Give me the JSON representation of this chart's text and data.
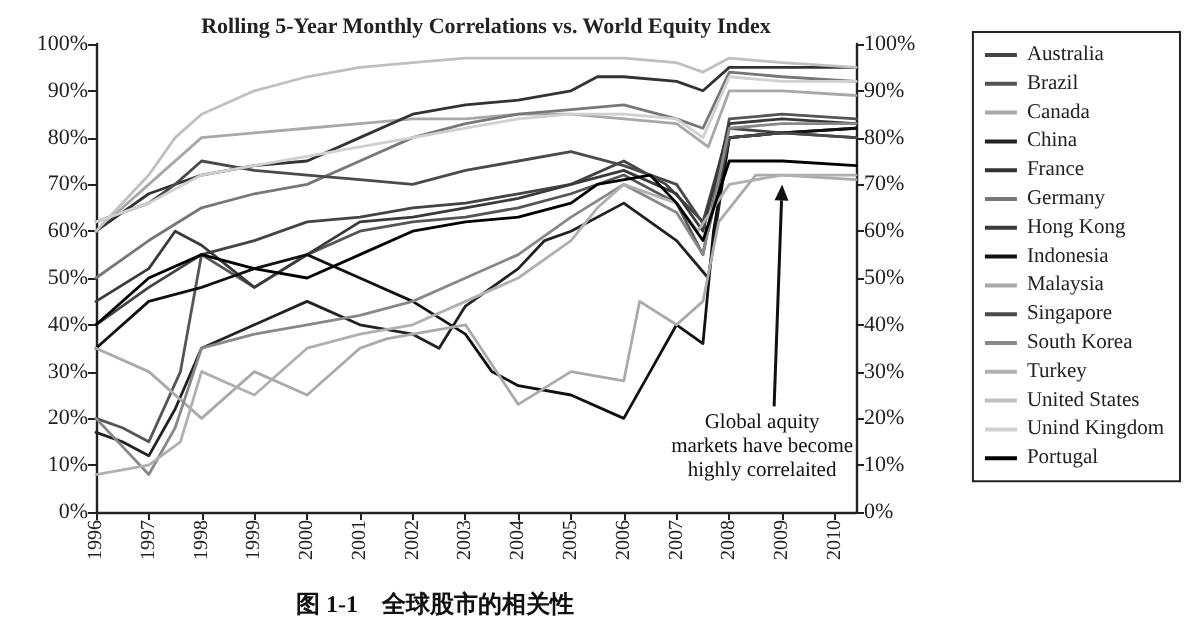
{
  "chart_data": {
    "type": "line",
    "title": "Rolling 5-Year Monthly Correlations vs. World Equity Index",
    "annotations": [
      {
        "text": "Global aquity markets have become highly correlaited",
        "x": 2009,
        "y": 70
      },
      "图 1-1　全球股市的相关性"
    ],
    "xlim": [
      1996,
      2010.4
    ],
    "xticks": [
      1996,
      1997,
      1998,
      1999,
      2000,
      2001,
      2002,
      2003,
      2004,
      2005,
      2006,
      2007,
      2008,
      2009,
      2010
    ],
    "ylim": [
      0,
      100
    ],
    "yticks": [
      {
        "value": 0,
        "label": "0%"
      },
      {
        "value": 10,
        "label": "10%"
      },
      {
        "value": 20,
        "label": "20%"
      },
      {
        "value": 30,
        "label": "30%"
      },
      {
        "value": 40,
        "label": "40%"
      },
      {
        "value": 50,
        "label": "50%"
      },
      {
        "value": 60,
        "label": "60%"
      },
      {
        "value": 70,
        "label": "70%"
      },
      {
        "value": 80,
        "label": "80%"
      },
      {
        "value": 90,
        "label": "90%"
      },
      {
        "value": 100,
        "label": "100%"
      }
    ],
    "y2lim": [
      0,
      100
    ],
    "y2ticks": [
      {
        "value": 0,
        "label": "0%"
      },
      {
        "value": 10,
        "label": "10%"
      },
      {
        "value": 20,
        "label": "20%"
      },
      {
        "value": 30,
        "label": "30%"
      },
      {
        "value": 40,
        "label": "40%"
      },
      {
        "value": 50,
        "label": "50%"
      },
      {
        "value": 60,
        "label": "60%"
      },
      {
        "value": 70,
        "label": "70%"
      },
      {
        "value": 80,
        "label": "80%"
      },
      {
        "value": 90,
        "label": "90%"
      },
      {
        "value": 100,
        "label": "100%"
      }
    ],
    "legend": "right",
    "grid": false,
    "marker": "none",
    "line_style": "solid",
    "series": [
      {
        "name": "Australia",
        "color": "#444444",
        "x": [
          1996,
          1997,
          1998,
          1999,
          2000,
          2001,
          2002,
          2003,
          2004,
          2005,
          2006,
          2006.8,
          2007.5,
          2008,
          2009,
          2010.4
        ],
        "values": [
          40,
          48,
          55,
          58,
          62,
          63,
          65,
          66,
          68,
          70,
          75,
          70,
          62,
          82,
          81,
          80
        ]
      },
      {
        "name": "Brazil",
        "color": "#555555",
        "x": [
          1996,
          1996.5,
          1997,
          1997.6,
          1998,
          1999,
          2000,
          2001,
          2002,
          2003,
          2004,
          2005,
          2006,
          2007,
          2007.5,
          2008,
          2009,
          2010.4
        ],
        "values": [
          20,
          18,
          15,
          30,
          55,
          48,
          55,
          60,
          62,
          63,
          65,
          68,
          72,
          66,
          55,
          84,
          85,
          84
        ]
      },
      {
        "name": "Canada",
        "color": "#a8a8a8",
        "x": [
          1996,
          1997,
          1998,
          1999,
          2000,
          2001,
          2002,
          2003,
          2004,
          2005,
          2006,
          2007,
          2007.6,
          2008,
          2009,
          2010.4
        ],
        "values": [
          60,
          70,
          80,
          81,
          82,
          83,
          84,
          84,
          85,
          85,
          84,
          83,
          78,
          90,
          90,
          89
        ]
      },
      {
        "name": "China",
        "color": "#222222",
        "x": [
          1996,
          1996.5,
          1997,
          1997.5,
          1998,
          1999,
          2000,
          2001,
          2002,
          2002.5,
          2003,
          2004,
          2004.5,
          2005,
          2006,
          2007,
          2007.6,
          2008,
          2009,
          2010.4
        ],
        "values": [
          17,
          15,
          12,
          22,
          35,
          40,
          45,
          40,
          38,
          35,
          44,
          52,
          58,
          60,
          66,
          58,
          50,
          80,
          81,
          82
        ]
      },
      {
        "name": "France",
        "color": "#333333",
        "x": [
          1996,
          1997,
          1998,
          1999,
          2000,
          2001,
          2002,
          2003,
          2004,
          2005,
          2005.5,
          2006,
          2007,
          2007.5,
          2008,
          2009,
          2010.4
        ],
        "values": [
          60,
          68,
          72,
          74,
          75,
          80,
          85,
          87,
          88,
          90,
          93,
          93,
          92,
          90,
          95,
          95,
          95
        ]
      },
      {
        "name": "Germany",
        "color": "#777777",
        "x": [
          1996,
          1997,
          1998,
          1999,
          2000,
          2001,
          2002,
          2003,
          2004,
          2005,
          2006,
          2007,
          2007.5,
          2008,
          2009,
          2010.4
        ],
        "values": [
          50,
          58,
          65,
          68,
          70,
          75,
          80,
          83,
          85,
          86,
          87,
          84,
          82,
          94,
          93,
          92
        ]
      },
      {
        "name": "Hong Kong",
        "color": "#3a3a3a",
        "x": [
          1996,
          1997,
          1997.5,
          1998,
          1999,
          2000,
          2001,
          2002,
          2003,
          2004,
          2005,
          2006,
          2007,
          2007.5,
          2008,
          2009,
          2010.4
        ],
        "values": [
          45,
          52,
          60,
          57,
          48,
          55,
          62,
          63,
          65,
          67,
          70,
          73,
          68,
          60,
          83,
          84,
          83
        ]
      },
      {
        "name": "Indonesia",
        "color": "#111111",
        "x": [
          1996,
          1997,
          1998,
          1998.5,
          1999,
          2000,
          2001,
          2002,
          2003,
          2003.5,
          2004,
          2005,
          2006,
          2006.5,
          2007,
          2007.5,
          2007.7,
          2008,
          2009,
          2010.4
        ],
        "values": [
          35,
          45,
          48,
          50,
          52,
          55,
          50,
          45,
          38,
          30,
          27,
          25,
          20,
          30,
          40,
          36,
          60,
          80,
          81,
          82
        ]
      },
      {
        "name": "Malaysia",
        "color": "#aaaaaa",
        "x": [
          1996,
          1997,
          1998,
          1999,
          2000,
          2001,
          2001.5,
          2002,
          2003,
          2004,
          2005,
          2006,
          2006.3,
          2007,
          2007.5,
          2007.8,
          2008.5,
          2009,
          2010.4
        ],
        "values": [
          35,
          30,
          20,
          30,
          25,
          35,
          37,
          38,
          40,
          23,
          30,
          28,
          45,
          40,
          45,
          62,
          72,
          72,
          71
        ]
      },
      {
        "name": "Singapore",
        "color": "#4a4a4a",
        "x": [
          1996,
          1997,
          1997.5,
          1998,
          1999,
          2000,
          2001,
          2002,
          2003,
          2004,
          2005,
          2006,
          2007,
          2007.6,
          2008,
          2009,
          2010.4
        ],
        "values": [
          62,
          66,
          70,
          75,
          73,
          72,
          71,
          70,
          73,
          75,
          77,
          74,
          70,
          60,
          80,
          81,
          80
        ]
      },
      {
        "name": "South Korea",
        "color": "#888888",
        "x": [
          1996,
          1997,
          1997.5,
          1998,
          1999,
          2000,
          2001,
          2002,
          2003,
          2004,
          2005,
          2006,
          2007,
          2007.5,
          2008,
          2009,
          2010.4
        ],
        "values": [
          20,
          8,
          18,
          35,
          38,
          40,
          42,
          45,
          50,
          55,
          63,
          70,
          64,
          55,
          82,
          83,
          83
        ]
      },
      {
        "name": "Turkey",
        "color": "#b0b0b0",
        "x": [
          1996,
          1997,
          1997.6,
          1998,
          1999,
          2000,
          2001,
          2002,
          2003,
          2004,
          2005,
          2005.5,
          2006,
          2007,
          2007.4,
          2008,
          2009,
          2010.4
        ],
        "values": [
          8,
          10,
          15,
          30,
          25,
          35,
          38,
          40,
          45,
          50,
          58,
          65,
          70,
          66,
          60,
          70,
          72,
          72
        ]
      },
      {
        "name": "United States",
        "color": "#c0c0c0",
        "x": [
          1996,
          1997,
          1997.5,
          1998,
          1999,
          2000,
          2001,
          2002,
          2003,
          2004,
          2005,
          2006,
          2007,
          2007.5,
          2008,
          2009,
          2010.4
        ],
        "values": [
          60,
          72,
          80,
          85,
          90,
          93,
          95,
          96,
          97,
          97,
          97,
          97,
          96,
          94,
          97,
          96,
          95
        ]
      },
      {
        "name": "Unind Kingdom",
        "color": "#d0d0d0",
        "x": [
          1996,
          1997,
          1998,
          1999,
          2000,
          2001,
          2002,
          2003,
          2004,
          2005,
          2006,
          2007,
          2007.5,
          2008,
          2009,
          2010.4
        ],
        "values": [
          62,
          66,
          72,
          74,
          76,
          78,
          80,
          82,
          84,
          85,
          85,
          84,
          80,
          93,
          92,
          92
        ]
      },
      {
        "name": "Portugal",
        "color": "#000000",
        "x": [
          1996,
          1997,
          1998,
          1999,
          2000,
          2001,
          2002,
          2003,
          2004,
          2005,
          2005.5,
          2006.5,
          2007,
          2007.5,
          2008,
          2009,
          2010.4
        ],
        "values": [
          40,
          50,
          55,
          52,
          50,
          55,
          60,
          62,
          63,
          66,
          70,
          72,
          66,
          58,
          75,
          75,
          74
        ]
      }
    ]
  }
}
